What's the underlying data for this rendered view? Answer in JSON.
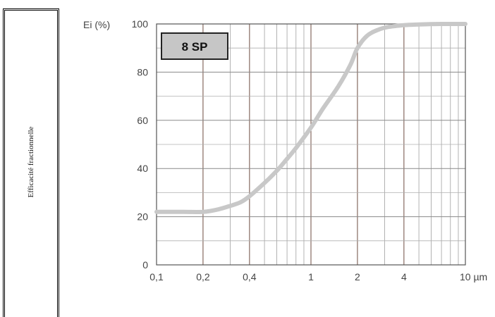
{
  "side_label": "Efficacité fractionnelle",
  "chart_data": {
    "type": "line",
    "ylabel": "Ei (%)",
    "xunit": "µm",
    "badge": "8 SP",
    "xscale": "log",
    "xlim": [
      0.1,
      10
    ],
    "ylim": [
      0,
      100
    ],
    "grid": true,
    "x_ticks": [
      {
        "value": 0.1,
        "label": "0,1"
      },
      {
        "value": 0.2,
        "label": "0,2"
      },
      {
        "value": 0.4,
        "label": "0,4"
      },
      {
        "value": 1,
        "label": "1"
      },
      {
        "value": 2,
        "label": "2"
      },
      {
        "value": 4,
        "label": "4"
      },
      {
        "value": 10,
        "label": "10 µm"
      }
    ],
    "y_ticks": [
      0,
      20,
      40,
      60,
      80,
      100
    ],
    "series": [
      {
        "color": "#c8c8c8",
        "x": [
          0.1,
          0.15,
          0.2,
          0.25,
          0.3,
          0.35,
          0.4,
          0.5,
          0.6,
          0.7,
          0.8,
          1.0,
          1.2,
          1.5,
          1.8,
          2.0,
          2.3,
          2.7,
          3.2,
          4.0,
          5.0,
          7.0,
          10.0
        ],
        "y": [
          22,
          22,
          22,
          23,
          24.5,
          26,
          28.5,
          34,
          39,
          44,
          48.5,
          57,
          65,
          74,
          83,
          90,
          95,
          97.5,
          98.8,
          99.5,
          99.8,
          100,
          100
        ]
      }
    ]
  }
}
